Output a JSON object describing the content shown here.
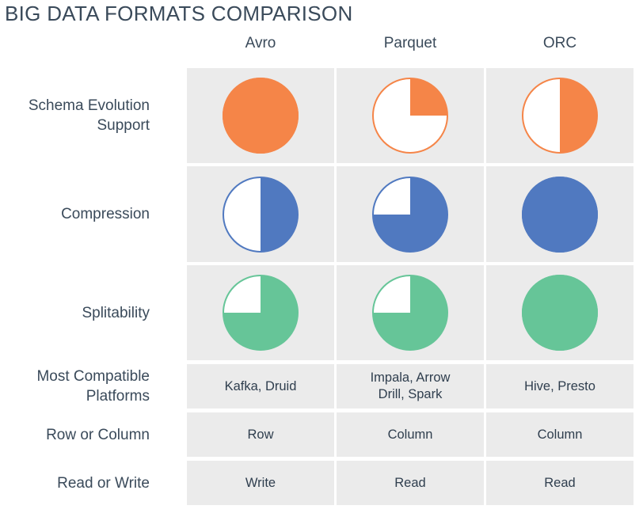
{
  "title": "BIG DATA FORMATS COMPARISON",
  "columns": [
    "Avro",
    "Parquet",
    "ORC"
  ],
  "rows": [
    {
      "label_lines": [
        "Schema Evolution",
        "Support"
      ],
      "kind": "rating",
      "color": "#f58548",
      "values": [
        1.0,
        0.25,
        0.5
      ]
    },
    {
      "label_lines": [
        "Compression"
      ],
      "kind": "rating",
      "color": "#5079c0",
      "values": [
        0.5,
        0.75,
        1.0
      ]
    },
    {
      "label_lines": [
        "Splitability"
      ],
      "kind": "rating",
      "color": "#66c598",
      "values": [
        0.75,
        0.75,
        1.0
      ]
    },
    {
      "label_lines": [
        "Most Compatible",
        "Platforms"
      ],
      "kind": "text",
      "values": [
        "Kafka, Druid",
        "Impala, Arrow\nDrill, Spark",
        "Hive, Presto"
      ]
    },
    {
      "label_lines": [
        "Row or Column"
      ],
      "kind": "text",
      "values": [
        "Row",
        "Column",
        "Column"
      ]
    },
    {
      "label_lines": [
        "Read or Write"
      ],
      "kind": "text",
      "values": [
        "Write",
        "Read",
        "Read"
      ]
    }
  ],
  "chart_data": {
    "type": "table",
    "title": "BIG DATA FORMATS COMPARISON",
    "columns": [
      "Avro",
      "Parquet",
      "ORC"
    ],
    "ratings": [
      {
        "row": "Schema Evolution Support",
        "values": [
          1.0,
          0.25,
          0.5
        ]
      },
      {
        "row": "Compression",
        "values": [
          0.5,
          0.75,
          1.0
        ]
      },
      {
        "row": "Splitability",
        "values": [
          0.75,
          0.75,
          1.0
        ]
      }
    ],
    "text_rows": [
      {
        "row": "Most Compatible Platforms",
        "values": [
          "Kafka, Druid",
          "Impala, Arrow Drill, Spark",
          "Hive, Presto"
        ]
      },
      {
        "row": "Row or Column",
        "values": [
          "Row",
          "Column",
          "Column"
        ]
      },
      {
        "row": "Read or Write",
        "values": [
          "Write",
          "Read",
          "Read"
        ]
      }
    ]
  }
}
